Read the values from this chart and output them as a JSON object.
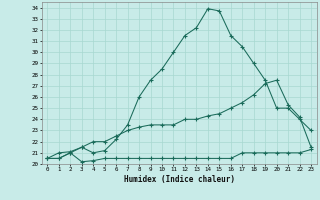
{
  "xlabel": "Humidex (Indice chaleur)",
  "ylabel": "",
  "xlim": [
    -0.5,
    23.5
  ],
  "ylim": [
    20,
    34.5
  ],
  "bg_color": "#c8ebe8",
  "grid_color": "#a8d8d0",
  "line_color": "#1a6b5a",
  "line1_x": [
    0,
    1,
    2,
    3,
    4,
    5,
    6,
    7,
    8,
    9,
    10,
    11,
    12,
    13,
    14,
    15,
    16,
    17,
    18,
    19,
    20,
    21,
    22,
    23
  ],
  "line1_y": [
    20.5,
    21.0,
    21.1,
    21.5,
    21.0,
    21.2,
    22.2,
    23.5,
    26.0,
    27.5,
    28.5,
    30.0,
    31.5,
    32.2,
    33.9,
    33.7,
    31.5,
    30.5,
    29.0,
    27.5,
    25.0,
    25.0,
    24.0,
    23.0
  ],
  "line2_x": [
    0,
    1,
    2,
    3,
    4,
    5,
    6,
    7,
    8,
    9,
    10,
    11,
    12,
    13,
    14,
    15,
    16,
    17,
    18,
    19,
    20,
    21,
    22,
    23
  ],
  "line2_y": [
    20.5,
    20.5,
    21.0,
    21.5,
    22.0,
    22.0,
    22.5,
    23.0,
    23.3,
    23.5,
    23.5,
    23.5,
    24.0,
    24.0,
    24.3,
    24.5,
    25.0,
    25.5,
    26.2,
    27.2,
    27.5,
    25.3,
    24.2,
    21.5
  ],
  "line3_x": [
    0,
    1,
    2,
    3,
    4,
    5,
    6,
    7,
    8,
    9,
    10,
    11,
    12,
    13,
    14,
    15,
    16,
    17,
    18,
    19,
    20,
    21,
    22,
    23
  ],
  "line3_y": [
    20.5,
    20.5,
    21.0,
    20.2,
    20.3,
    20.5,
    20.5,
    20.5,
    20.5,
    20.5,
    20.5,
    20.5,
    20.5,
    20.5,
    20.5,
    20.5,
    20.5,
    21.0,
    21.0,
    21.0,
    21.0,
    21.0,
    21.0,
    21.3
  ],
  "yticks": [
    20,
    21,
    22,
    23,
    24,
    25,
    26,
    27,
    28,
    29,
    30,
    31,
    32,
    33,
    34
  ],
  "xticks": [
    0,
    1,
    2,
    3,
    4,
    5,
    6,
    7,
    8,
    9,
    10,
    11,
    12,
    13,
    14,
    15,
    16,
    17,
    18,
    19,
    20,
    21,
    22,
    23
  ]
}
